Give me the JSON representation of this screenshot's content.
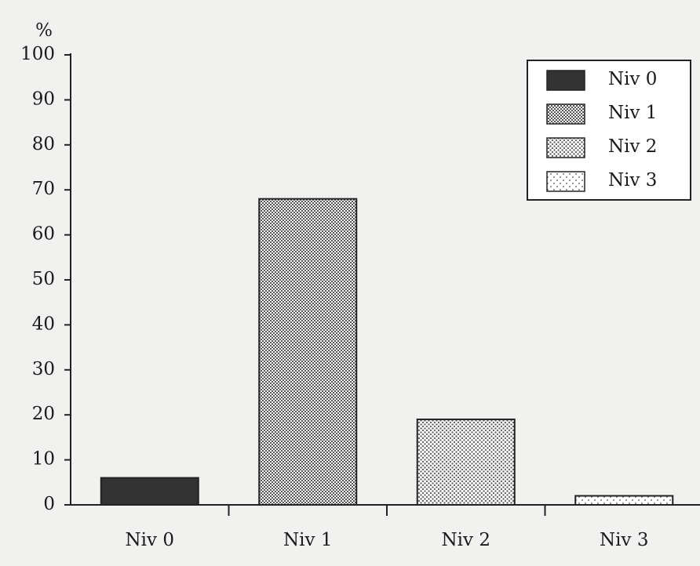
{
  "chart_data": {
    "type": "bar",
    "y_label": "%",
    "categories": [
      "Niv 0",
      "Niv 1",
      "Niv 2",
      "Niv 3"
    ],
    "values": [
      6,
      68,
      19,
      2
    ],
    "colors": [
      "#333333",
      "#555555",
      "#666666",
      "#777777"
    ],
    "ylim": [
      0,
      100
    ],
    "yticks": [
      0,
      10,
      20,
      30,
      40,
      50,
      60,
      70,
      80,
      90,
      100
    ],
    "legend": "upper right"
  }
}
